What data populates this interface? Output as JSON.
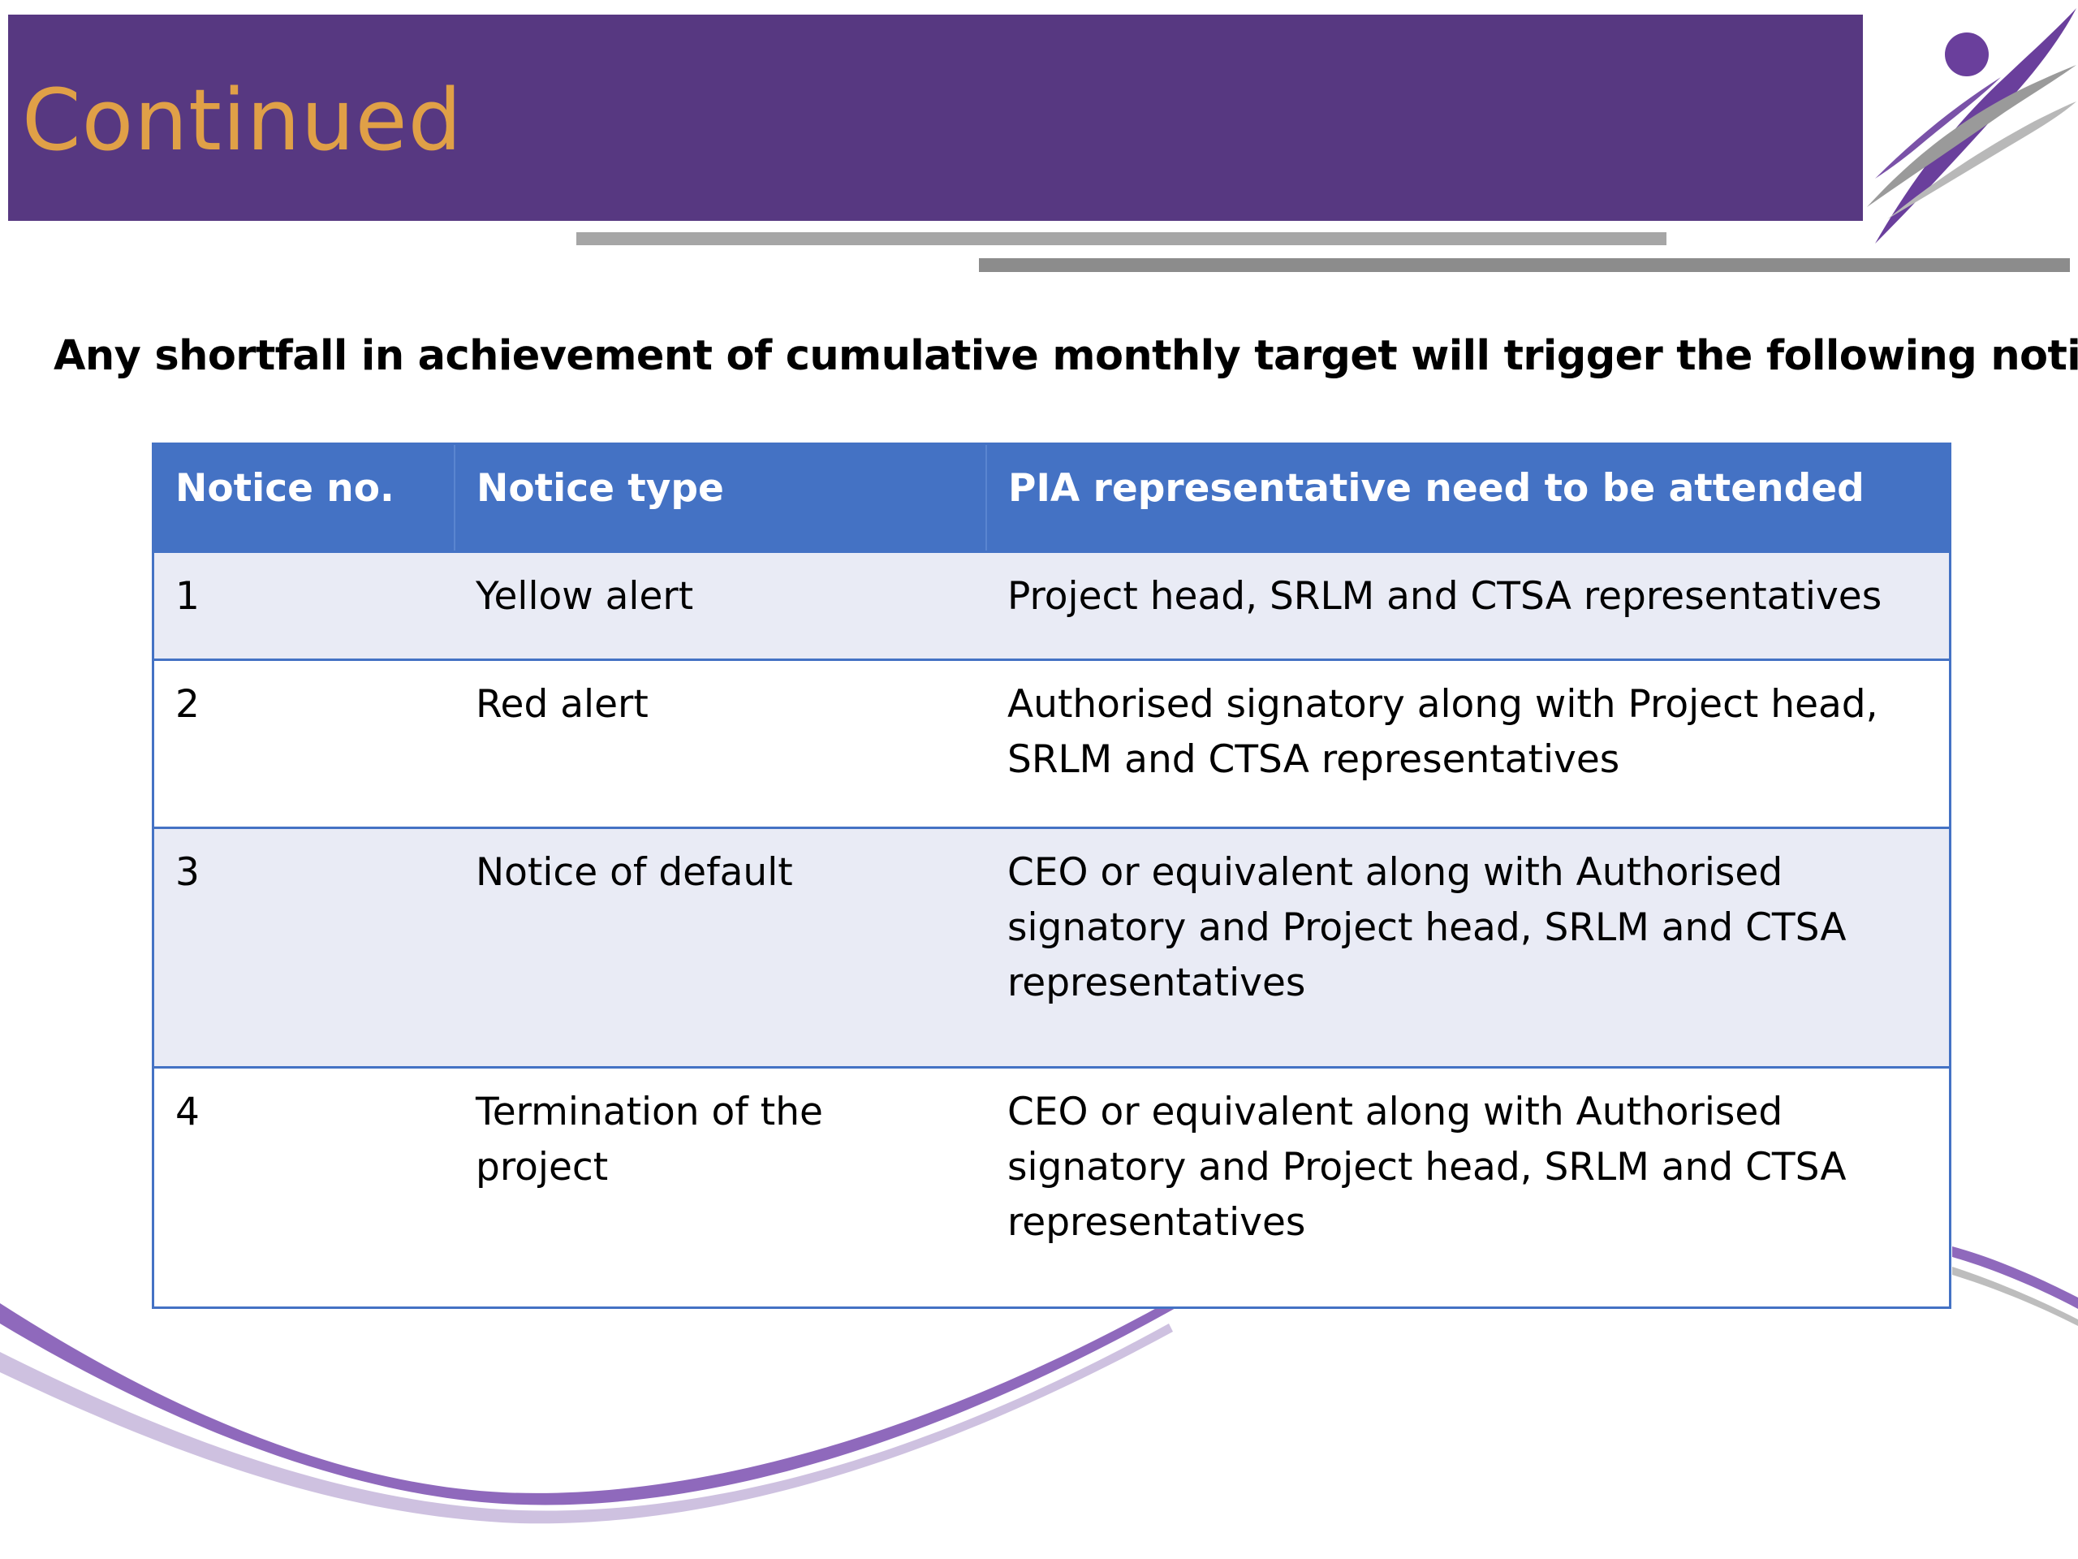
{
  "slide": {
    "title": "Continued",
    "subtitle": "Any shortfall in achievement of cumulative monthly target will trigger the following notices",
    "colors": {
      "title_bar": "#573881",
      "title_text": "#e0a047",
      "table_header": "#4472c4",
      "table_row_shaded": "#e9ebf5"
    },
    "logo_icon": "running-figure-logo-icon"
  },
  "table": {
    "headers": {
      "col1": "Notice no.",
      "col2": "Notice type",
      "col3": "PIA representative need to be attended"
    },
    "rows": [
      {
        "no": "1",
        "type": "Yellow alert",
        "rep": "Project head, SRLM and CTSA representatives"
      },
      {
        "no": "2",
        "type": "Red alert",
        "rep": "Authorised signatory along with Project head, SRLM and CTSA representatives"
      },
      {
        "no": "3",
        "type": "Notice of default",
        "rep": "CEO or equivalent along with Authorised signatory and Project head, SRLM and CTSA representatives"
      },
      {
        "no": "4",
        "type": "Termination of the project",
        "rep": "CEO or equivalent along with Authorised signatory and Project head, SRLM and CTSA representatives"
      }
    ]
  }
}
